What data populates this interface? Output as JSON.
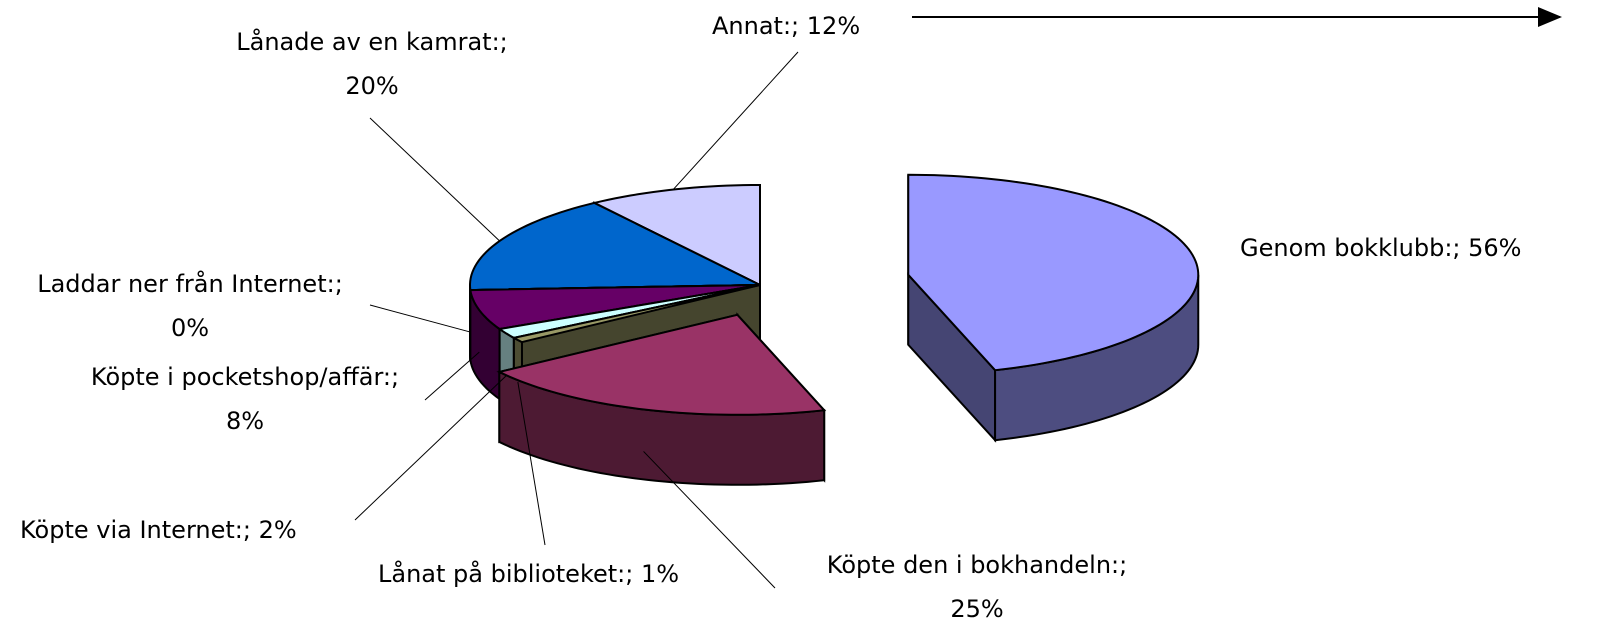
{
  "chart_data": {
    "type": "pie3d",
    "categories": [
      "Genom bokklubb:;",
      "Köpte den i bokhandeln:;",
      "Lånat på biblioteket:;",
      "Köpte via Internet:;",
      "Köpte i pocketshop/affär:;",
      "Laddar ner från Internet:;",
      "Lånade av en kamrat:;",
      "Annat:;"
    ],
    "values": [
      56,
      25,
      1,
      2,
      8,
      0,
      20,
      12
    ],
    "value_labels": [
      "56%",
      "25%",
      "1%",
      "2%",
      "8%",
      "0%",
      "20%",
      "12%"
    ],
    "colors": [
      "#9999ff",
      "#993366",
      "#999966",
      "#ccffff",
      "#660066",
      "#993333",
      "#0066cc",
      "#ccccff"
    ]
  }
}
